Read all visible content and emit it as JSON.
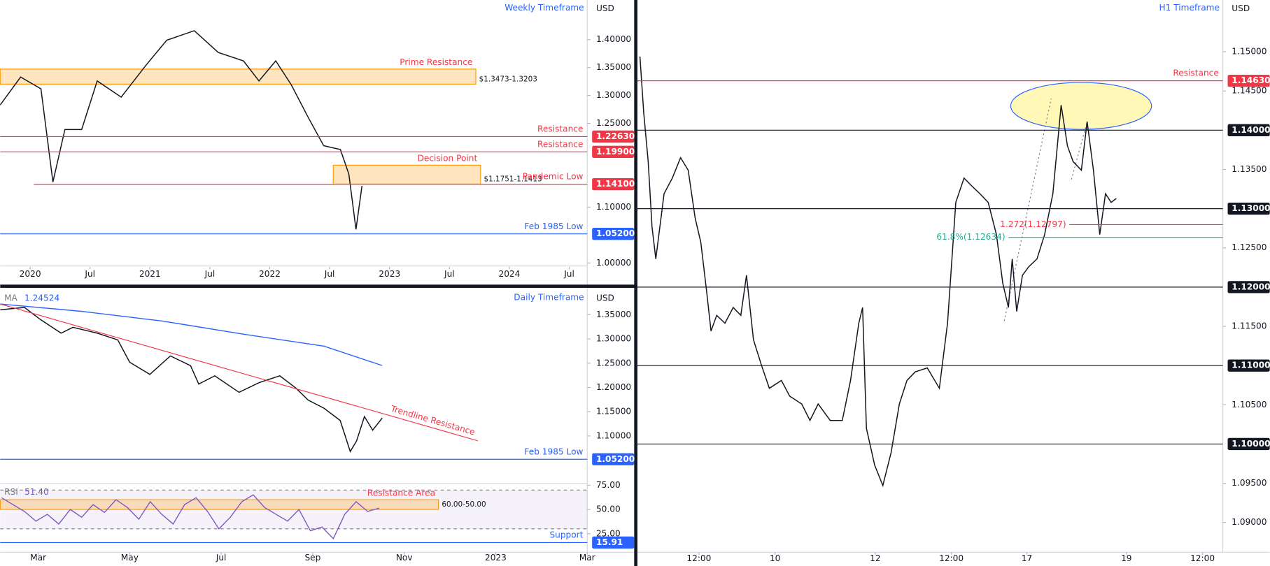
{
  "chart_data": [
    {
      "type": "line",
      "title": "Weekly Timeframe",
      "unit": "USD",
      "xlim": [
        2019.75,
        2024.65
      ],
      "ylim": [
        0.993,
        1.471
      ],
      "xticks": [
        2020,
        {
          "value": 2020.5,
          "label": "Jul"
        },
        2021,
        {
          "value": 2021.5,
          "label": "Jul"
        },
        2022,
        {
          "value": 2022.5,
          "label": "Jul"
        },
        2023,
        {
          "value": 2023.5,
          "label": "Jul"
        },
        2024,
        {
          "value": 2024.5,
          "label": "Jul"
        }
      ],
      "yticks": [
        {
          "value": 1.4,
          "label": "1.40000"
        },
        {
          "value": 1.35,
          "label": "1.35000"
        },
        {
          "value": 1.3,
          "label": "1.30000"
        },
        {
          "value": 1.25,
          "label": "1.25000"
        },
        {
          "value": 1.1,
          "label": "1.10000"
        },
        {
          "value": 1.0,
          "label": "1.00000"
        }
      ],
      "series": [
        {
          "color": "#131722",
          "x": [
            2019.75,
            2019.92,
            2020.09,
            2020.19,
            2020.29,
            2020.43,
            2020.56,
            2020.76,
            2020.97,
            2021.14,
            2021.37,
            2021.57,
            2021.78,
            2021.91,
            2022.05,
            2022.18,
            2022.32,
            2022.45,
            2022.59,
            2022.66,
            2022.72,
            2022.77
          ],
          "values": [
            1.283,
            1.333,
            1.312,
            1.145,
            1.239,
            1.239,
            1.326,
            1.297,
            1.355,
            1.399,
            1.416,
            1.377,
            1.362,
            1.326,
            1.362,
            1.319,
            1.261,
            1.21,
            1.203,
            1.159,
            1.06,
            1.138
          ]
        }
      ],
      "zones": [
        {
          "label": "Prime Resistance",
          "range_label": "$1.3473-1.3203",
          "high": 1.3473,
          "low": 1.3203,
          "x": [
            2019.75,
            2023.72
          ],
          "color": "#ff9800"
        },
        {
          "label": "Decision Point",
          "range_label": "$1.1751-1.1413",
          "high": 1.1751,
          "low": 1.1413,
          "x": [
            2022.53,
            2023.76
          ],
          "color": "#ff9800"
        }
      ],
      "levels": [
        {
          "label": "Resistance",
          "value": 1.2263,
          "value_label": "1.22630",
          "color": "#f23645"
        },
        {
          "label": "Resistance",
          "value": 1.199,
          "value_label": "1.19900",
          "color": "#f23645"
        },
        {
          "label": "Pandemic Low",
          "value": 1.141,
          "value_label": "1.14100",
          "color": "#f23645",
          "x_start": 2020.03
        },
        {
          "label": "Feb 1985 Low",
          "value": 1.052,
          "value_label": "1.05200",
          "color": "#2962ff"
        }
      ]
    },
    {
      "type": "line",
      "title": "Daily Timeframe",
      "unit": "USD",
      "xlim": [
        2.17,
        15.0
      ],
      "ylim": [
        1.002,
        1.402
      ],
      "yticks": [
        {
          "value": 1.35,
          "label": "1.35000"
        },
        {
          "value": 1.3,
          "label": "1.30000"
        },
        {
          "value": 1.25,
          "label": "1.25000"
        },
        {
          "value": 1.2,
          "label": "1.20000"
        },
        {
          "value": 1.15,
          "label": "1.15000"
        },
        {
          "value": 1.1,
          "label": "1.10000"
        }
      ],
      "series": [
        {
          "color": "#131722",
          "x": [
            2.17,
            2.7,
            3.05,
            3.5,
            3.76,
            4.29,
            4.74,
            5.0,
            5.44,
            5.89,
            6.33,
            6.51,
            6.86,
            7.39,
            7.83,
            8.28,
            8.63,
            8.9,
            9.25,
            9.6,
            9.82,
            9.96,
            10.13,
            10.31,
            10.52
          ],
          "values": [
            1.36,
            1.365,
            1.34,
            1.312,
            1.324,
            1.312,
            1.298,
            1.252,
            1.227,
            1.265,
            1.245,
            1.207,
            1.224,
            1.19,
            1.21,
            1.224,
            1.199,
            1.174,
            1.157,
            1.132,
            1.068,
            1.09,
            1.14,
            1.112,
            1.137
          ]
        },
        {
          "name": "MA",
          "last_label": "1.24524",
          "color": "#2962ff",
          "x": [
            2.17,
            3.94,
            5.71,
            7.48,
            9.25,
            10.52
          ],
          "values": [
            1.372,
            1.357,
            1.337,
            1.31,
            1.285,
            1.24524
          ]
        }
      ],
      "trendlines": [
        {
          "label": "Trendline Resistance",
          "x": [
            2.17,
            12.61
          ],
          "values": [
            1.372,
            1.09
          ],
          "color": "#f23645"
        }
      ],
      "levels": [
        {
          "label": "Feb 1985 Low",
          "value": 1.052,
          "value_label": "1.05200",
          "color": "#2962ff"
        }
      ]
    },
    {
      "type": "line",
      "xlim": [
        2.17,
        15.0
      ],
      "ylim": [
        5.9,
        76.7
      ],
      "xticks": [
        {
          "value": 3,
          "label": "Mar"
        },
        {
          "value": 5,
          "label": "May"
        },
        {
          "value": 7,
          "label": "Jul"
        },
        {
          "value": 9,
          "label": "Sep"
        },
        {
          "value": 11,
          "label": "Nov"
        },
        {
          "value": 13,
          "label": "2023"
        },
        {
          "value": 15,
          "label": "Mar"
        }
      ],
      "yticks": [
        {
          "value": 75,
          "label": "75.00"
        },
        {
          "value": 50,
          "label": "50.00"
        },
        {
          "value": 25,
          "label": "25.00"
        }
      ],
      "dashed": [
        70,
        30
      ],
      "series": [
        {
          "name": "RSI",
          "last_label": "51.40",
          "color": "#7e57c2",
          "x": [
            2.2,
            2.45,
            2.7,
            2.95,
            3.2,
            3.45,
            3.7,
            3.95,
            4.2,
            4.45,
            4.7,
            4.95,
            5.2,
            5.45,
            5.7,
            5.95,
            6.2,
            6.45,
            6.7,
            6.95,
            7.2,
            7.45,
            7.7,
            7.95,
            8.2,
            8.45,
            8.7,
            8.95,
            9.2,
            9.45,
            9.7,
            9.95,
            10.2,
            10.45
          ],
          "values": [
            62,
            55,
            48,
            38,
            45,
            35,
            50,
            42,
            55,
            47,
            60,
            52,
            40,
            58,
            45,
            35,
            55,
            62,
            48,
            30,
            42,
            58,
            65,
            52,
            45,
            38,
            50,
            28,
            32,
            20,
            45,
            58,
            48,
            51.4
          ]
        }
      ],
      "zones": [
        {
          "label": "Resistance Area",
          "range_label": "60.00-50.00",
          "high": 60,
          "low": 50,
          "x": [
            2.17,
            11.75
          ],
          "color": "#ff9800"
        }
      ],
      "levels": [
        {
          "label": "Support",
          "value": 15.91,
          "value_label": "15.91",
          "color": "#2962ff"
        }
      ]
    },
    {
      "type": "line",
      "title": "H1 Timeframe",
      "unit": "USD",
      "xlim": [
        0,
        92.3
      ],
      "ylim": [
        1.0862,
        1.1566
      ],
      "xticks": [
        {
          "value": 9.7,
          "label": "12:00"
        },
        {
          "value": 21.7,
          "label": "10"
        },
        {
          "value": 37.5,
          "label": "12"
        },
        {
          "value": 49.5,
          "label": "12:00"
        },
        {
          "value": 61.4,
          "label": "17"
        },
        {
          "value": 77.1,
          "label": "19"
        },
        {
          "value": 89.1,
          "label": "12:00"
        }
      ],
      "yticks": [
        {
          "value": 1.15,
          "label": "1.15000"
        },
        {
          "value": 1.145,
          "label": "1.14500"
        },
        {
          "value": 1.135,
          "label": "1.13500"
        },
        {
          "value": 1.125,
          "label": "1.12500"
        },
        {
          "value": 1.115,
          "label": "1.11500"
        },
        {
          "value": 1.105,
          "label": "1.10500"
        },
        {
          "value": 1.095,
          "label": "1.09500"
        },
        {
          "value": 1.09,
          "label": "1.09000"
        }
      ],
      "series": [
        {
          "color": "#131722",
          "x": [
            0.4,
            1.0,
            1.7,
            2.3,
            2.9,
            4.2,
            5.5,
            6.8,
            8.0,
            9.1,
            10.0,
            10.9,
            11.6,
            12.5,
            13.8,
            15.1,
            16.3,
            17.2,
            18.3,
            19.5,
            20.8,
            22.7,
            24.0,
            25.9,
            27.2,
            28.5,
            30.4,
            32.3,
            33.6,
            34.9,
            35.5,
            36.1,
            37.4,
            38.7,
            40.0,
            41.3,
            42.5,
            43.8,
            45.7,
            47.6,
            48.9,
            50.2,
            51.5,
            52.7,
            54.0,
            55.3,
            56.6,
            57.6,
            58.5,
            59.1,
            59.8,
            60.7,
            61.7,
            63.0,
            64.2,
            65.5,
            66.2,
            66.8,
            67.8,
            68.7,
            70.0,
            70.9,
            71.9,
            72.9,
            73.8,
            74.7,
            75.5
          ],
          "values": [
            1.1494,
            1.1422,
            1.136,
            1.1277,
            1.1236,
            1.1319,
            1.1339,
            1.1365,
            1.1349,
            1.1288,
            1.1257,
            1.1195,
            1.1144,
            1.1164,
            1.1154,
            1.1174,
            1.1164,
            1.1215,
            1.1133,
            1.1102,
            1.1071,
            1.1081,
            1.1061,
            1.1051,
            1.103,
            1.1051,
            1.103,
            1.103,
            1.1081,
            1.1154,
            1.1174,
            1.102,
            1.0973,
            1.0947,
            1.0989,
            1.1051,
            1.1081,
            1.1092,
            1.1097,
            1.1071,
            1.1154,
            1.1308,
            1.1339,
            1.1329,
            1.1319,
            1.1308,
            1.1267,
            1.1205,
            1.1174,
            1.1236,
            1.1169,
            1.1215,
            1.1226,
            1.1236,
            1.1267,
            1.1319,
            1.138,
            1.1432,
            1.138,
            1.136,
            1.1349,
            1.1411,
            1.1349,
            1.1267,
            1.1319,
            1.1308,
            1.1313
          ]
        }
      ],
      "levels": [
        {
          "label": "Resistance",
          "value": 1.1463,
          "value_label": "1.14630",
          "color": "#f23645"
        },
        {
          "value": 1.14,
          "value_label": "1.14000",
          "color": "#131722"
        },
        {
          "value": 1.13,
          "value_label": "1.13000",
          "color": "#131722"
        },
        {
          "value": 1.12,
          "value_label": "1.12000",
          "color": "#131722"
        },
        {
          "value": 1.11,
          "value_label": "1.11000",
          "color": "#131722"
        },
        {
          "value": 1.1,
          "value_label": "1.10000",
          "color": "#131722"
        },
        {
          "label": "1.272(1.12797)",
          "value": 1.12797,
          "color": "#f23645",
          "x_start": 68.1,
          "label_side": "start"
        },
        {
          "label": "61.8%(1.12634)",
          "value": 1.12634,
          "color": "#22ab94",
          "x_start": 58.5,
          "label_side": "start"
        }
      ]
    }
  ]
}
